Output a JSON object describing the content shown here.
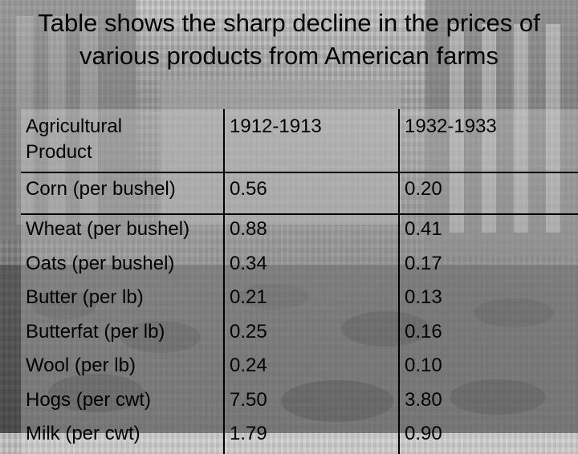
{
  "title": "Table shows the sharp decline in the prices of various products from American farms",
  "table": {
    "headers": [
      "Agricultural Product",
      "1912-1913",
      "1932-1933"
    ],
    "rows": [
      [
        "Corn (per bushel)",
        "0.56",
        "0.20"
      ],
      [
        "Wheat (per bushel)",
        "0.88",
        "0.41"
      ],
      [
        "Oats (per bushel)",
        "0.34",
        "0.17"
      ],
      [
        "Butter (per lb)",
        "0.21",
        "0.13"
      ],
      [
        "Butterfat (per lb)",
        "0.25",
        "0.16"
      ],
      [
        "Wool (per lb)",
        "0.24",
        "0.10"
      ],
      [
        "Hogs (per cwt)",
        "7.50",
        "3.80"
      ],
      [
        "Milk (per cwt)",
        "1.79",
        "0.90"
      ]
    ]
  }
}
